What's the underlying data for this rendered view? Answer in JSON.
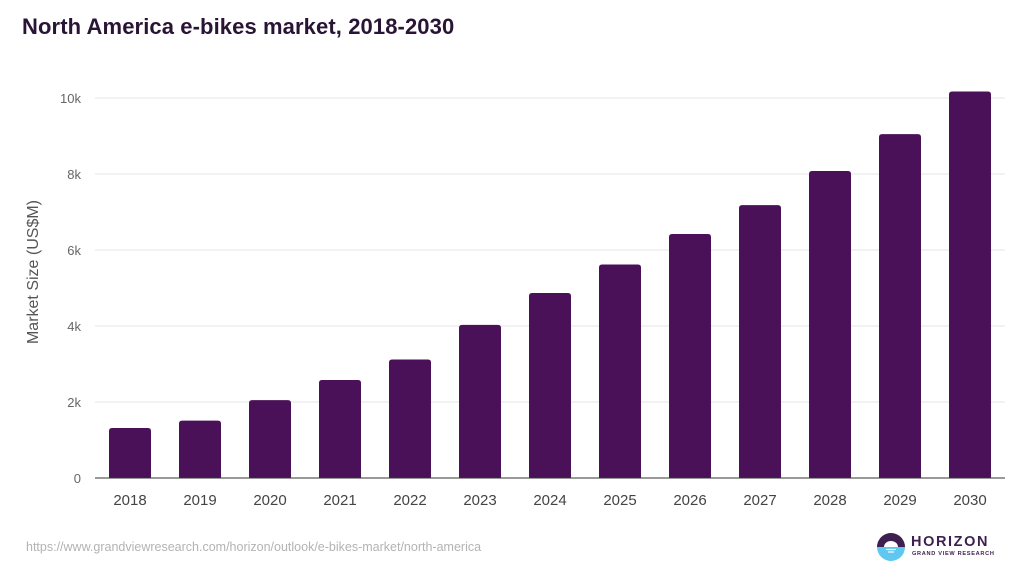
{
  "chart_data": {
    "type": "bar",
    "title": "North America e-bikes market, 2018-2030",
    "xlabel": "",
    "ylabel": "Market Size (US$M)",
    "categories": [
      "2018",
      "2019",
      "2020",
      "2021",
      "2022",
      "2023",
      "2024",
      "2025",
      "2026",
      "2027",
      "2028",
      "2029",
      "2030"
    ],
    "values": [
      1316,
      1510,
      2050,
      2580,
      3120,
      4030,
      4870,
      5620,
      6420,
      7180,
      8080,
      9050,
      10170
    ],
    "ylim": [
      0,
      10000
    ],
    "yticks": [
      0,
      2000,
      4000,
      6000,
      8000,
      10000
    ],
    "ytick_labels": [
      "0",
      "2k",
      "4k",
      "6k",
      "8k",
      "10k"
    ],
    "grid": true,
    "legend": "none",
    "bar_color": "#4b1158"
  },
  "footer": {
    "source_url": "https://www.grandviewresearch.com/horizon/outlook/e-bikes-market/north-america",
    "logo_word": "HORIZON",
    "logo_sub": "GRAND VIEW RESEARCH"
  },
  "colors": {
    "title": "#2a1436",
    "logo_dark": "#3e1f4f",
    "logo_light": "#5ec8f0"
  }
}
